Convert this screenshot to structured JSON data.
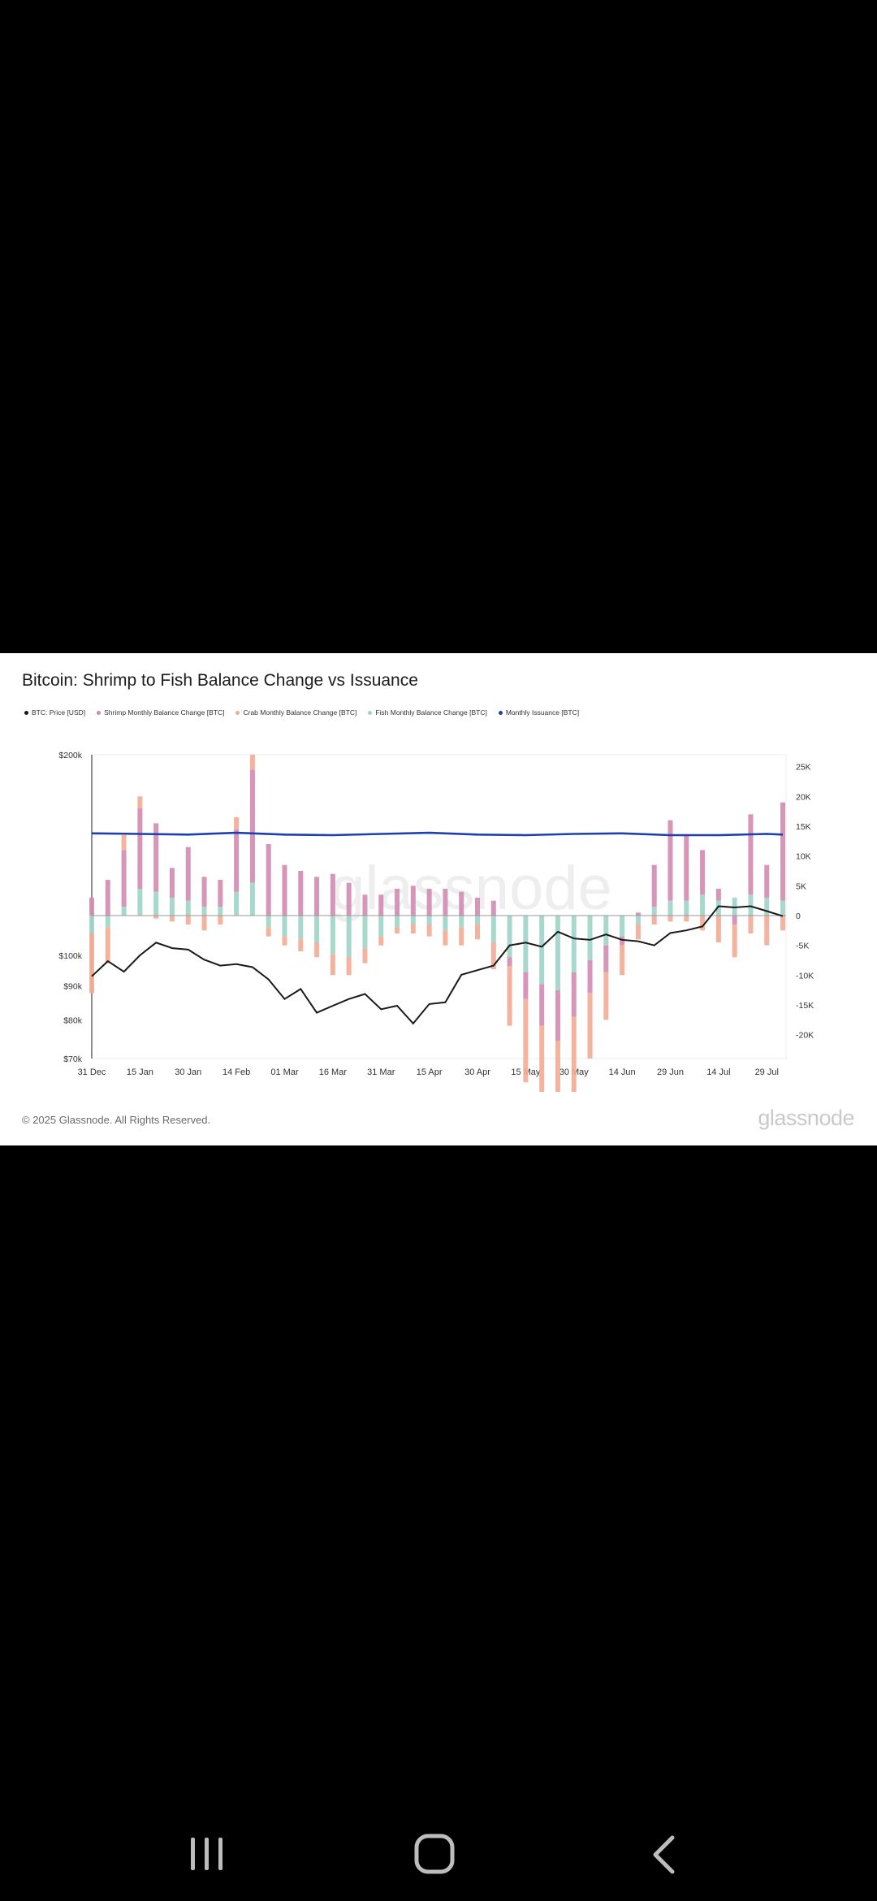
{
  "card": {
    "title": "Bitcoin: Shrimp to Fish Balance Change vs Issuance",
    "copyright": "© 2025 Glassnode. All Rights Reserved.",
    "brand": "glassnode",
    "watermark": "glassnode"
  },
  "navbar": {
    "recents_icon": "recent-apps-icon",
    "home_icon": "home-icon",
    "back_icon": "back-icon"
  },
  "chart_data": {
    "type": "bar",
    "title": "Bitcoin: Shrimp to Fish Balance Change vs Issuance",
    "legend_position": "top-left",
    "grid": false,
    "x_ticks": [
      "31 Dec",
      "15 Jan",
      "30 Jan",
      "14 Feb",
      "01 Mar",
      "16 Mar",
      "31 Mar",
      "15 Apr",
      "30 Apr",
      "15 May",
      "30 May",
      "14 Jun",
      "29 Jun",
      "14 Jul",
      "29 Jul"
    ],
    "y_left": {
      "label": "BTC: Price [USD]",
      "scale": "log",
      "range": [
        70000,
        200000
      ],
      "ticks": [
        "$200k",
        "$100k",
        "$90k",
        "$80k",
        "$70k"
      ]
    },
    "y_right": {
      "label": "BTC",
      "range": [
        -24000,
        27000
      ],
      "ticks": [
        "25K",
        "20K",
        "15K",
        "10K",
        "5K",
        "0",
        "-5K",
        "-10K",
        "-15K",
        "-20K"
      ]
    },
    "series": [
      {
        "name": "BTC: Price [USD]",
        "kind": "line",
        "axis": "left",
        "color": "#1a1a1a",
        "x": [
          "31 Dec",
          "05 Jan",
          "10 Jan",
          "15 Jan",
          "20 Jan",
          "25 Jan",
          "30 Jan",
          "04 Feb",
          "09 Feb",
          "14 Feb",
          "19 Feb",
          "24 Feb",
          "01 Mar",
          "06 Mar",
          "11 Mar",
          "16 Mar",
          "21 Mar",
          "26 Mar",
          "31 Mar",
          "05 Apr",
          "10 Apr",
          "15 Apr",
          "20 Apr",
          "25 Apr",
          "30 Apr",
          "05 May",
          "10 May",
          "15 May",
          "20 May",
          "25 May",
          "30 May",
          "04 Jun",
          "09 Jun",
          "14 Jun",
          "19 Jun",
          "24 Jun",
          "29 Jun",
          "04 Jul",
          "09 Jul",
          "14 Jul",
          "19 Jul",
          "24 Jul",
          "29 Jul",
          "03 Aug"
        ],
        "values": [
          93000,
          98000,
          94500,
          100000,
          104500,
          102500,
          102000,
          98500,
          96500,
          97000,
          96000,
          92000,
          86000,
          89000,
          82000,
          84000,
          86000,
          87500,
          83000,
          84000,
          79000,
          84500,
          85000,
          93500,
          95000,
          96500,
          103500,
          104500,
          103000,
          108500,
          106000,
          105500,
          107500,
          105500,
          105000,
          103500,
          108000,
          109000,
          110500,
          118500,
          118000,
          118500,
          116500,
          114500
        ]
      },
      {
        "name": "Monthly Issuance [BTC]",
        "kind": "line",
        "axis": "right",
        "color": "#1f3fb0",
        "x": [
          "31 Dec",
          "15 Jan",
          "30 Jan",
          "14 Feb",
          "01 Mar",
          "16 Mar",
          "31 Mar",
          "15 Apr",
          "30 Apr",
          "15 May",
          "30 May",
          "14 Jun",
          "29 Jun",
          "14 Jul",
          "29 Jul",
          "03 Aug"
        ],
        "values": [
          13800,
          13700,
          13600,
          13900,
          13600,
          13500,
          13700,
          13900,
          13600,
          13500,
          13700,
          13800,
          13500,
          13500,
          13700,
          13600
        ]
      },
      {
        "name": "Shrimp Monthly Balance Change [BTC]",
        "kind": "bar",
        "axis": "right",
        "color": "#d08bb0",
        "x": [
          "31 Dec",
          "05 Jan",
          "10 Jan",
          "15 Jan",
          "20 Jan",
          "25 Jan",
          "30 Jan",
          "04 Feb",
          "09 Feb",
          "14 Feb",
          "19 Feb",
          "24 Feb",
          "01 Mar",
          "06 Mar",
          "11 Mar",
          "16 Mar",
          "21 Mar",
          "26 Mar",
          "31 Mar",
          "05 Apr",
          "10 Apr",
          "15 Apr",
          "20 Apr",
          "25 Apr",
          "30 Apr",
          "05 May",
          "10 May",
          "15 May",
          "20 May",
          "25 May",
          "30 May",
          "04 Jun",
          "09 Jun",
          "14 Jun",
          "19 Jun",
          "24 Jun",
          "29 Jun",
          "04 Jul",
          "09 Jul",
          "14 Jul",
          "19 Jul",
          "24 Jul",
          "29 Jul",
          "03 Aug"
        ],
        "values": [
          3000,
          6000,
          9500,
          13500,
          11500,
          5000,
          9000,
          5000,
          4500,
          10500,
          19000,
          12000,
          8500,
          7500,
          6500,
          7000,
          5500,
          3500,
          3500,
          4500,
          5000,
          4500,
          4500,
          4000,
          3000,
          2500,
          -1500,
          -4500,
          -7000,
          -8500,
          -7500,
          -5500,
          -4500,
          -1500,
          500,
          7000,
          13500,
          11000,
          7500,
          2000,
          -1500,
          13500,
          5500,
          16500
        ]
      },
      {
        "name": "Crab Monthly Balance Change [BTC]",
        "kind": "bar",
        "axis": "right",
        "color": "#f2ab95",
        "x": [
          "31 Dec",
          "05 Jan",
          "10 Jan",
          "15 Jan",
          "20 Jan",
          "25 Jan",
          "30 Jan",
          "04 Feb",
          "09 Feb",
          "14 Feb",
          "19 Feb",
          "24 Feb",
          "01 Mar",
          "06 Mar",
          "11 Mar",
          "16 Mar",
          "21 Mar",
          "26 Mar",
          "31 Mar",
          "05 Apr",
          "10 Apr",
          "15 Apr",
          "20 Apr",
          "25 Apr",
          "30 Apr",
          "05 May",
          "10 May",
          "15 May",
          "20 May",
          "25 May",
          "30 May",
          "04 Jun",
          "09 Jun",
          "14 Jun",
          "19 Jun",
          "24 Jun",
          "29 Jun",
          "04 Jul",
          "09 Jul",
          "14 Jul",
          "19 Jul",
          "24 Jul",
          "29 Jul",
          "03 Aug"
        ],
        "values": [
          -10000,
          -6000,
          2500,
          2000,
          -500,
          -1000,
          -1500,
          -2500,
          -1500,
          2000,
          2500,
          -1500,
          -1500,
          -2000,
          -2500,
          -3500,
          -3000,
          -2500,
          -1500,
          -1000,
          -1500,
          -2000,
          -2500,
          -3000,
          -2500,
          -4500,
          -10000,
          -14000,
          -18000,
          -20500,
          -16000,
          -11000,
          -8000,
          -5000,
          -2500,
          -1500,
          -1000,
          -1000,
          -2500,
          -4500,
          -5500,
          -3000,
          -5000,
          -2500
        ]
      },
      {
        "name": "Fish Monthly Balance Change [BTC]",
        "kind": "bar",
        "axis": "right",
        "color": "#9fd4c6",
        "x": [
          "31 Dec",
          "05 Jan",
          "10 Jan",
          "15 Jan",
          "20 Jan",
          "25 Jan",
          "30 Jan",
          "04 Feb",
          "09 Feb",
          "14 Feb",
          "19 Feb",
          "24 Feb",
          "01 Mar",
          "06 Mar",
          "11 Mar",
          "16 Mar",
          "21 Mar",
          "26 Mar",
          "31 Mar",
          "05 Apr",
          "10 Apr",
          "15 Apr",
          "20 Apr",
          "25 Apr",
          "30 Apr",
          "05 May",
          "10 May",
          "15 May",
          "20 May",
          "25 May",
          "30 May",
          "04 Jun",
          "09 Jun",
          "14 Jun",
          "19 Jun",
          "24 Jun",
          "29 Jun",
          "04 Jul",
          "09 Jul",
          "14 Jul",
          "19 Jul",
          "24 Jul",
          "29 Jul",
          "03 Aug"
        ],
        "values": [
          -3000,
          -2000,
          1500,
          4500,
          4000,
          3000,
          2500,
          1500,
          1500,
          4000,
          5500,
          -2000,
          -3500,
          -4000,
          -4500,
          -6500,
          -7000,
          -5500,
          -3500,
          -2000,
          -1500,
          -1500,
          -2500,
          -2000,
          -1500,
          -4500,
          -7000,
          -9500,
          -11500,
          -12500,
          -9500,
          -7500,
          -5000,
          -3500,
          -1500,
          1500,
          2500,
          2500,
          3500,
          2500,
          3000,
          3500,
          3000,
          2500
        ]
      }
    ]
  }
}
